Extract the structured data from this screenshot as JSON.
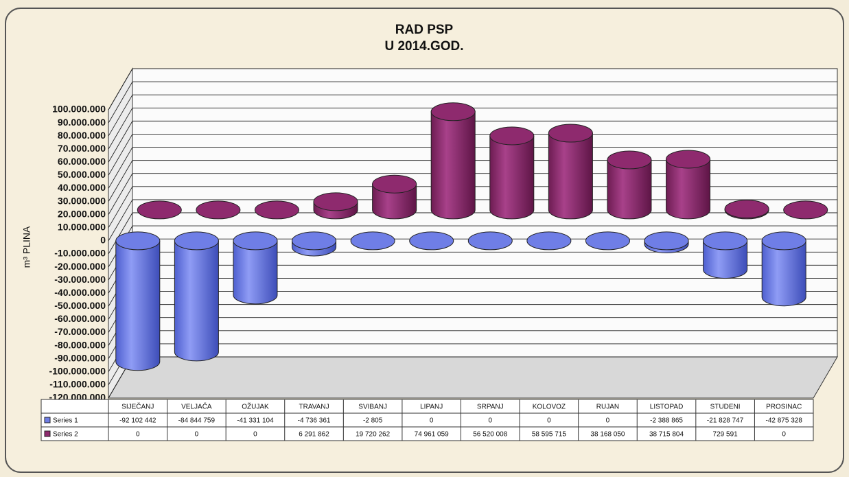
{
  "chart_data": {
    "type": "cylinder",
    "title": "RAD PSP",
    "subtitle": "U 2014.GOD.",
    "y_label": "m³ PLINA",
    "categories": [
      "SIJEČANJ",
      "VELJAČA",
      "OŽUJAK",
      "TRAVANJ",
      "SVIBANJ",
      "LIPANJ",
      "SRPANJ",
      "KOLOVOZ",
      "RUJAN",
      "LISTOPAD",
      "STUDENI",
      "PROSINAC"
    ],
    "series": [
      {
        "name": "Series 1",
        "color": "#6f7ee6",
        "values": [
          -92102442,
          -84844759,
          -41331104,
          -4736361,
          -2805,
          0,
          0,
          0,
          0,
          -2388865,
          -21828747,
          -42875328
        ],
        "value_labels": [
          "-92 102 442",
          "-84 844 759",
          "-41 331 104",
          "-4 736 361",
          "-2 805",
          "0",
          "0",
          "0",
          "0",
          "-2 388 865",
          "-21 828 747",
          "-42 875 328"
        ]
      },
      {
        "name": "Series 2",
        "color": "#8e2a6e",
        "values": [
          0,
          0,
          0,
          6291862,
          19720262,
          74961059,
          56520008,
          58595715,
          38168050,
          38715804,
          729591,
          0
        ],
        "value_labels": [
          "0",
          "0",
          "0",
          "6 291 862",
          "19 720 262",
          "74 961 059",
          "56 520 008",
          "58 595 715",
          "38 168 050",
          "38 715 804",
          "729 591",
          "0"
        ]
      }
    ],
    "ylim": [
      -120000000,
      100000000
    ],
    "yticks": [
      {
        "value": -120000000,
        "label": "-120.000.000"
      },
      {
        "value": -110000000,
        "label": "-110.000.000"
      },
      {
        "value": -100000000,
        "label": "-100.000.000"
      },
      {
        "value": -90000000,
        "label": "-90.000.000"
      },
      {
        "value": -80000000,
        "label": "-80.000.000"
      },
      {
        "value": -70000000,
        "label": "-70.000.000"
      },
      {
        "value": -60000000,
        "label": "-60.000.000"
      },
      {
        "value": -50000000,
        "label": "-50.000.000"
      },
      {
        "value": -40000000,
        "label": "-40.000.000"
      },
      {
        "value": -30000000,
        "label": "-30.000.000"
      },
      {
        "value": -20000000,
        "label": "-20.000.000"
      },
      {
        "value": -10000000,
        "label": "-10.000.000"
      },
      0,
      {
        "value": 10000000,
        "label": "10.000.000"
      },
      {
        "value": 20000000,
        "label": "20.000.000"
      },
      {
        "value": 30000000,
        "label": "30.000.000"
      },
      {
        "value": 40000000,
        "label": "40.000.000"
      },
      {
        "value": 50000000,
        "label": "50.000.000"
      },
      {
        "value": 60000000,
        "label": "60.000.000"
      },
      {
        "value": 70000000,
        "label": "70.000.000"
      },
      {
        "value": 80000000,
        "label": "80.000.000"
      },
      {
        "value": 90000000,
        "label": "90.000.000"
      },
      {
        "value": 100000000,
        "label": "100.000.000"
      }
    ],
    "grid": true
  }
}
